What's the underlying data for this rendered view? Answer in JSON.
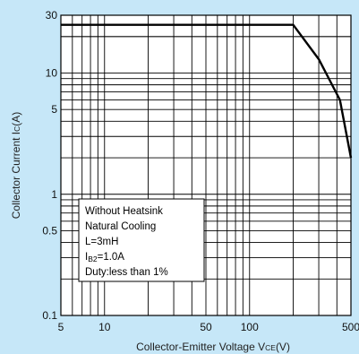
{
  "chart_data": {
    "type": "line",
    "title": "",
    "xlabel": "Collector-Emitter Voltage V",
    "xlabel_sub": "CE",
    "xlabel_unit": "(V)",
    "ylabel": "Collector Current I",
    "ylabel_sub": "C",
    "ylabel_unit": "(A)",
    "x_scale": "log",
    "y_scale": "log",
    "xlim": [
      5,
      500
    ],
    "ylim": [
      0.1,
      30
    ],
    "x_ticks": [
      5,
      10,
      50,
      100,
      500
    ],
    "x_tick_labels": [
      "5",
      "10",
      "50",
      "100",
      "500"
    ],
    "y_ticks": [
      0.1,
      0.5,
      1,
      5,
      10,
      30
    ],
    "y_tick_labels": [
      "0.1",
      "0.5",
      "1",
      "5",
      "10",
      "30"
    ],
    "grid": true,
    "series": [
      {
        "color": "#000000",
        "points": [
          [
            5,
            25
          ],
          [
            200,
            25
          ],
          [
            300,
            13
          ],
          [
            420,
            6
          ],
          [
            500,
            2
          ]
        ]
      }
    ],
    "annotation": {
      "lines": [
        {
          "text": "Without Heatsink"
        },
        {
          "text": "Natural Cooling"
        },
        {
          "text": "L=3mH"
        },
        {
          "text": "I",
          "sub": "B2",
          "after": "=1.0A"
        },
        {
          "text": "Duty:less than 1%"
        }
      ]
    }
  },
  "colors": {
    "background": "#c6e7f8",
    "plot_background": "#ffffff",
    "grid": "#000000",
    "curve": "#000000"
  }
}
